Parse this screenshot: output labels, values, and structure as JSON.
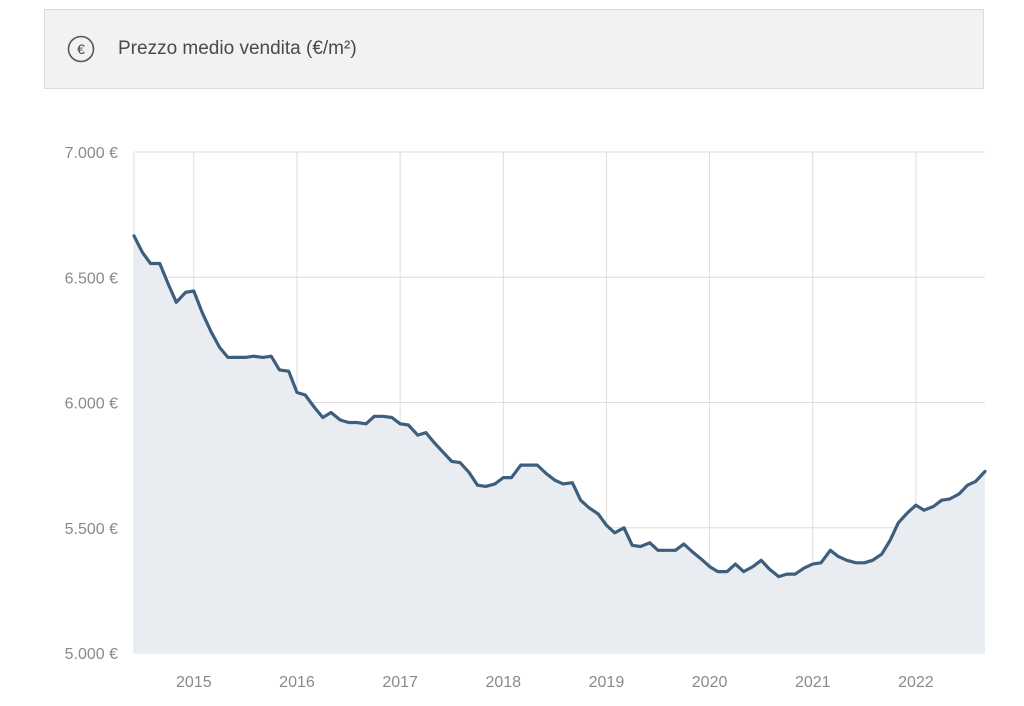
{
  "header": {
    "icon": "euro-circle-icon",
    "title": "Prezzo medio vendita (€/m²)"
  },
  "colors": {
    "line": "#3d5f7d",
    "area": "#e9edf1",
    "grid": "#dddddd",
    "axis_text": "#8a8a8a",
    "header_bg": "#f2f2f2"
  },
  "chart_data": {
    "type": "area",
    "title": "",
    "xlabel": "",
    "ylabel": "",
    "ylim": [
      5000,
      7000
    ],
    "xlim": [
      2014.42,
      2022.67
    ],
    "yticks": [
      {
        "value": 7000,
        "label": "7.000 €"
      },
      {
        "value": 6500,
        "label": "6.500 €"
      },
      {
        "value": 6000,
        "label": "6.000 €"
      },
      {
        "value": 5500,
        "label": "5.500 €"
      },
      {
        "value": 5000,
        "label": "5.000 €"
      }
    ],
    "xticks": [
      {
        "value": 2015,
        "label": "2015"
      },
      {
        "value": 2016,
        "label": "2016"
      },
      {
        "value": 2017,
        "label": "2017"
      },
      {
        "value": 2018,
        "label": "2018"
      },
      {
        "value": 2019,
        "label": "2019"
      },
      {
        "value": 2020,
        "label": "2020"
      },
      {
        "value": 2021,
        "label": "2021"
      },
      {
        "value": 2022,
        "label": "2022"
      }
    ],
    "grid": true,
    "series": [
      {
        "x": [
          2014.42,
          2014.5,
          2014.58,
          2014.67,
          2014.75,
          2014.83,
          2014.92,
          2015.0,
          2015.08,
          2015.17,
          2015.25,
          2015.33,
          2015.42,
          2015.5,
          2015.58,
          2015.67,
          2015.75,
          2015.83,
          2015.92,
          2016.0,
          2016.08,
          2016.17,
          2016.25,
          2016.33,
          2016.42,
          2016.5,
          2016.58,
          2016.67,
          2016.75,
          2016.83,
          2016.92,
          2017.0,
          2017.08,
          2017.17,
          2017.25,
          2017.33,
          2017.42,
          2017.5,
          2017.58,
          2017.67,
          2017.75,
          2017.83,
          2017.92,
          2018.0,
          2018.08,
          2018.17,
          2018.25,
          2018.33,
          2018.42,
          2018.5,
          2018.58,
          2018.67,
          2018.75,
          2018.83,
          2018.92,
          2019.0,
          2019.08,
          2019.17,
          2019.25,
          2019.33,
          2019.42,
          2019.5,
          2019.58,
          2019.67,
          2019.75,
          2019.83,
          2019.92,
          2020.0,
          2020.08,
          2020.17,
          2020.25,
          2020.33,
          2020.42,
          2020.5,
          2020.58,
          2020.67,
          2020.75,
          2020.83,
          2020.92,
          2021.0,
          2021.08,
          2021.17,
          2021.25,
          2021.33,
          2021.42,
          2021.5,
          2021.58,
          2021.67,
          2021.75,
          2021.83,
          2021.92,
          2022.0,
          2022.08,
          2022.17,
          2022.25,
          2022.33,
          2022.42,
          2022.5,
          2022.58,
          2022.67
        ],
        "values": [
          6665,
          6600,
          6555,
          6555,
          6475,
          6400,
          6440,
          6445,
          6360,
          6280,
          6220,
          6180,
          6180,
          6180,
          6185,
          6180,
          6185,
          6130,
          6125,
          6040,
          6030,
          5980,
          5940,
          5960,
          5930,
          5920,
          5920,
          5915,
          5945,
          5945,
          5940,
          5915,
          5910,
          5870,
          5880,
          5840,
          5800,
          5765,
          5760,
          5720,
          5670,
          5665,
          5675,
          5700,
          5700,
          5750,
          5750,
          5750,
          5715,
          5690,
          5675,
          5680,
          5610,
          5580,
          5555,
          5510,
          5480,
          5500,
          5430,
          5425,
          5440,
          5410,
          5410,
          5410,
          5435,
          5405,
          5375,
          5345,
          5325,
          5325,
          5355,
          5325,
          5345,
          5370,
          5335,
          5305,
          5315,
          5315,
          5340,
          5355,
          5360,
          5410,
          5385,
          5370,
          5360,
          5360,
          5370,
          5395,
          5450,
          5520,
          5560,
          5590,
          5570,
          5585,
          5610,
          5615,
          5635,
          5670,
          5685,
          5725
        ]
      }
    ]
  }
}
